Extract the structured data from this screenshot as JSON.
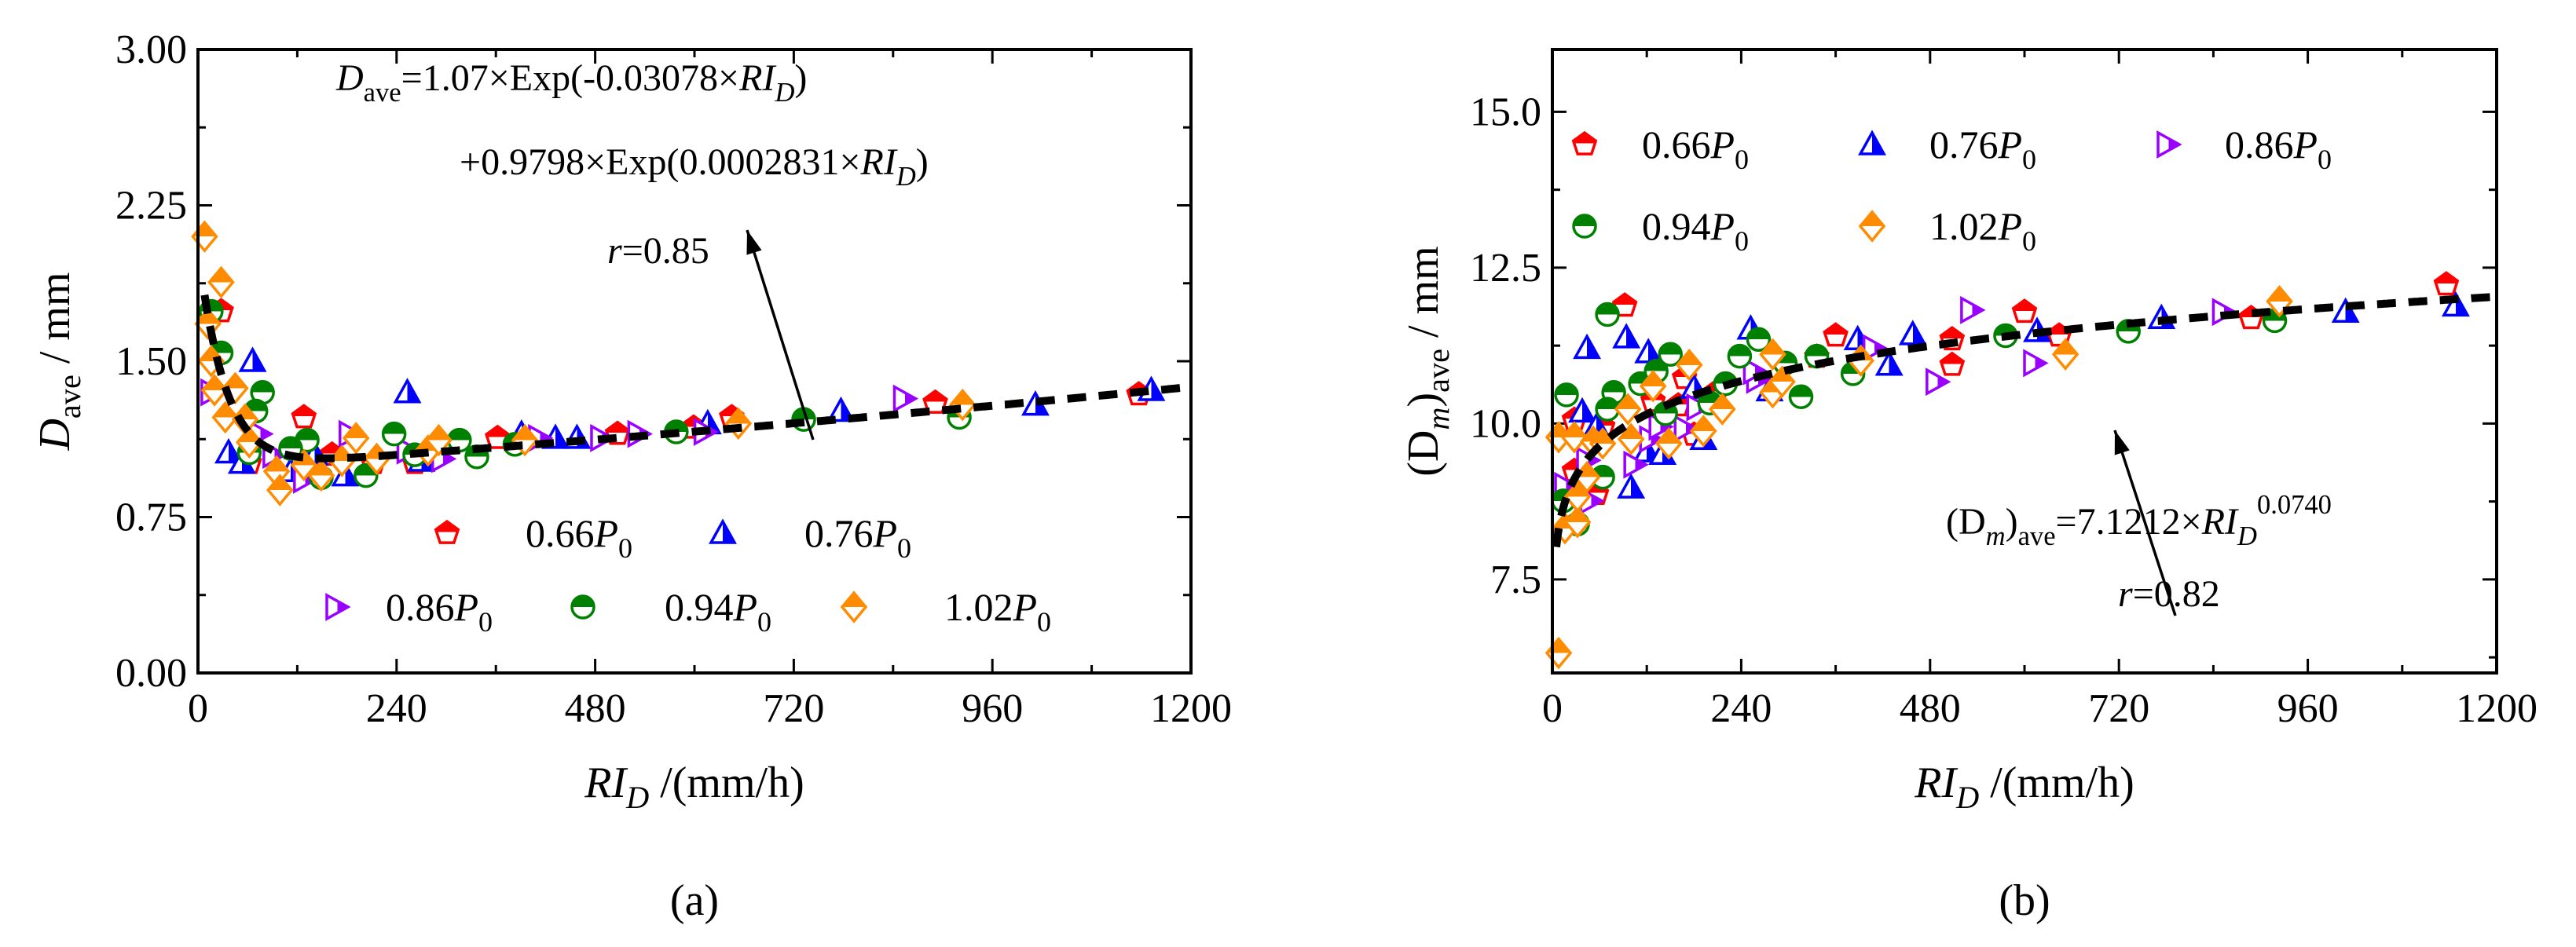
{
  "chart_data": [
    {
      "type": "scatter",
      "panel_label": "(a)",
      "panel_letter": "a",
      "xlabel": [
        {
          "t": "RI",
          "i": true
        },
        {
          "t": "D",
          "i": true,
          "sub": true
        },
        {
          "t": " /(mm/h)"
        }
      ],
      "ylabel": [
        {
          "t": "D",
          "i": true
        },
        {
          "t": "ave",
          "sub": true
        },
        {
          "t": " / mm"
        }
      ],
      "xlim": [
        0,
        1200
      ],
      "ylim": [
        0,
        3
      ],
      "x_ticks": [
        0,
        240,
        480,
        720,
        960,
        1200
      ],
      "y_ticks": [
        0,
        0.75,
        1.5,
        2.25,
        3.0
      ],
      "y_tick_labels": [
        "0.00",
        "0.75",
        "1.50",
        "2.25",
        "3.00"
      ],
      "fit": {
        "model": "1.07*exp(-0.03078*x)+0.9798*exp(0.0002831*x)",
        "x_start": 8,
        "r": 0.85
      },
      "equation_lines": [
        [
          {
            "t": "D",
            "i": true
          },
          {
            "t": "ave",
            "sub": true
          },
          {
            "t": "=1.07×Exp(-0.03078×"
          },
          {
            "t": "RI",
            "i": true
          },
          {
            "t": "D",
            "i": true,
            "sub": true
          },
          {
            "t": ")"
          }
        ],
        [
          {
            "t": "+0.9798×Exp(0.0002831×"
          },
          {
            "t": "RI",
            "i": true
          },
          {
            "t": "D",
            "i": true,
            "sub": true
          },
          {
            "t": ")"
          }
        ],
        [
          {
            "t": "r",
            "i": true
          },
          {
            "t": "=0.85"
          }
        ]
      ],
      "legend_placement": "bottom-center",
      "series": [
        {
          "name": "0.66P0",
          "coef": "0.66",
          "sym": "P",
          "sub": "0",
          "color": "#ff0000",
          "marker": "pentagon",
          "points": [
            [
              28,
              1.74
            ],
            [
              128,
              1.23
            ],
            [
              62,
              1.01
            ],
            [
              162,
              1.05
            ],
            [
              262,
              1.01
            ],
            [
              362,
              1.13
            ],
            [
              507,
              1.15
            ],
            [
              645,
              1.23
            ],
            [
              599,
              1.18
            ],
            [
              891,
              1.3
            ],
            [
              1137,
              1.34
            ],
            [
              212,
              1.01
            ]
          ]
        },
        {
          "name": "0.76P0",
          "coef": "0.76",
          "sym": "P",
          "sub": "0",
          "color": "#0000ff",
          "marker": "triangle-up",
          "points": [
            [
              66,
              1.5
            ],
            [
              253,
              1.35
            ],
            [
              37,
              1.06
            ],
            [
              53,
              1.01
            ],
            [
              112,
              0.97
            ],
            [
              178,
              0.95
            ],
            [
              270,
              1.02
            ],
            [
              391,
              1.15
            ],
            [
              432,
              1.13
            ],
            [
              458,
              1.13
            ],
            [
              616,
              1.2
            ],
            [
              777,
              1.26
            ],
            [
              1012,
              1.29
            ],
            [
              1152,
              1.36
            ],
            [
              141,
              1.05
            ]
          ]
        },
        {
          "name": "0.86P0",
          "coef": "0.86",
          "sym": "P",
          "sub": "0",
          "color": "#9900ff",
          "marker": "triangle-right",
          "points": [
            [
              16,
              1.35
            ],
            [
              74,
              1.15
            ],
            [
              91,
              1.05
            ],
            [
              128,
              0.93
            ],
            [
              183,
              1.15
            ],
            [
              253,
              1.07
            ],
            [
              412,
              1.13
            ],
            [
              487,
              1.13
            ],
            [
              532,
              1.15
            ],
            [
              612,
              1.16
            ],
            [
              853,
              1.32
            ],
            [
              295,
              1.03
            ]
          ]
        },
        {
          "name": "0.94P0",
          "coef": "0.94",
          "sym": "P",
          "sub": "0",
          "color": "#008000",
          "marker": "circle",
          "points": [
            [
              16,
              1.74
            ],
            [
              28,
              1.54
            ],
            [
              78,
              1.35
            ],
            [
              70,
              1.26
            ],
            [
              62,
              1.06
            ],
            [
              132,
              1.12
            ],
            [
              112,
              1.08
            ],
            [
              203,
              0.95
            ],
            [
              237,
              1.15
            ],
            [
              316,
              1.12
            ],
            [
              337,
              1.04
            ],
            [
              383,
              1.1
            ],
            [
              578,
              1.16
            ],
            [
              732,
              1.22
            ],
            [
              920,
              1.23
            ],
            [
              149,
              0.94
            ],
            [
              262,
              1.05
            ]
          ]
        },
        {
          "name": "1.02P0",
          "coef": "1.02",
          "sym": "P",
          "sub": "0",
          "color": "#ff8c00",
          "marker": "diamond",
          "points": [
            [
              8,
              2.1
            ],
            [
              28,
              1.88
            ],
            [
              12,
              1.68
            ],
            [
              16,
              1.5
            ],
            [
              20,
              1.36
            ],
            [
              45,
              1.37
            ],
            [
              33,
              1.23
            ],
            [
              57,
              1.22
            ],
            [
              62,
              1.11
            ],
            [
              95,
              0.97
            ],
            [
              99,
              0.88
            ],
            [
              128,
              1.0
            ],
            [
              149,
              0.95
            ],
            [
              174,
              1.02
            ],
            [
              191,
              1.13
            ],
            [
              216,
              1.03
            ],
            [
              278,
              1.07
            ],
            [
              291,
              1.12
            ],
            [
              395,
              1.12
            ],
            [
              653,
              1.2
            ],
            [
              924,
              1.29
            ]
          ]
        }
      ]
    },
    {
      "type": "scatter",
      "panel_label": "(b)",
      "panel_letter": "b",
      "xlabel": [
        {
          "t": "RI",
          "i": true
        },
        {
          "t": "D",
          "i": true,
          "sub": true
        },
        {
          "t": " /(mm/h)"
        }
      ],
      "ylabel": [
        {
          "t": "(D"
        },
        {
          "t": "m",
          "i": true,
          "sub": true
        },
        {
          "t": ")"
        },
        {
          "t": "ave",
          "sub": true
        },
        {
          "t": " / mm"
        }
      ],
      "xlim": [
        0,
        1200
      ],
      "ylim": [
        6,
        16
      ],
      "x_ticks": [
        0,
        240,
        480,
        720,
        960,
        1200
      ],
      "y_ticks": [
        7.5,
        10.0,
        12.5,
        15.0
      ],
      "y_tick_labels": [
        "7.5",
        "10.0",
        "12.5",
        "15.0"
      ],
      "fit": {
        "model": "7.1212*x^0.0740",
        "x_start": 5,
        "r": 0.82
      },
      "equation_lines": [
        [
          {
            "t": "(D"
          },
          {
            "t": "m",
            "i": true,
            "sub": true
          },
          {
            "t": ")"
          },
          {
            "t": "ave",
            "sub": true
          },
          {
            "t": "=7.1212×"
          },
          {
            "t": "RI",
            "i": true
          },
          {
            "t": "D",
            "i": true,
            "sub": true
          },
          {
            "t": "0.0740",
            "sup": true
          }
        ],
        [
          {
            "t": "r",
            "i": true
          },
          {
            "t": "=0.82"
          }
        ]
      ],
      "legend_placement": "top-left",
      "series": [
        {
          "name": "0.66P0",
          "coef": "0.66",
          "sym": "P",
          "sub": "0",
          "color": "#ff0000",
          "marker": "pentagon",
          "points": [
            [
              92,
              11.89
            ],
            [
              28,
              10.06
            ],
            [
              64,
              9.95
            ],
            [
              28,
              9.24
            ],
            [
              56,
              8.87
            ],
            [
              128,
              10.36
            ],
            [
              168,
              10.73
            ],
            [
              160,
              10.29
            ],
            [
              180,
              9.82
            ],
            [
              208,
              10.5
            ],
            [
              336,
              11.07
            ],
            [
              360,
              11.41
            ],
            [
              508,
              11.35
            ],
            [
              508,
              10.94
            ],
            [
              600,
              11.79
            ],
            [
              644,
              11.41
            ],
            [
              888,
              11.69
            ],
            [
              1136,
              12.23
            ]
          ]
        },
        {
          "name": "0.76P0",
          "coef": "0.76",
          "sym": "P",
          "sub": "0",
          "color": "#0000ff",
          "marker": "triangle-up",
          "points": [
            [
              44,
              11.21
            ],
            [
              94,
              11.38
            ],
            [
              38,
              10.19
            ],
            [
              56,
              9.95
            ],
            [
              100,
              8.97
            ],
            [
              122,
              11.14
            ],
            [
              120,
              9.55
            ],
            [
              140,
              9.51
            ],
            [
              180,
              10.57
            ],
            [
              192,
              9.75
            ],
            [
              252,
              11.52
            ],
            [
              276,
              10.53
            ],
            [
              388,
              11.35
            ],
            [
              428,
              10.94
            ],
            [
              458,
              11.43
            ],
            [
              616,
              11.48
            ],
            [
              774,
              11.69
            ],
            [
              1008,
              11.79
            ],
            [
              1148,
              11.89
            ]
          ]
        },
        {
          "name": "0.86P0",
          "coef": "0.86",
          "sym": "P",
          "sub": "0",
          "color": "#9900ff",
          "marker": "triangle-right",
          "points": [
            [
              16,
              9.0
            ],
            [
              44,
              9.41
            ],
            [
              48,
              8.76
            ],
            [
              104,
              9.34
            ],
            [
              124,
              9.75
            ],
            [
              136,
              9.95
            ],
            [
              168,
              9.92
            ],
            [
              184,
              10.26
            ],
            [
              260,
              10.7
            ],
            [
              256,
              10.84
            ],
            [
              408,
              11.21
            ],
            [
              488,
              10.67
            ],
            [
              532,
              11.82
            ],
            [
              612,
              10.97
            ],
            [
              852,
              11.79
            ]
          ]
        },
        {
          "name": "0.94P0",
          "coef": "0.94",
          "sym": "P",
          "sub": "0",
          "color": "#008000",
          "marker": "circle",
          "points": [
            [
              18,
              10.46
            ],
            [
              70,
              11.75
            ],
            [
              78,
              10.5
            ],
            [
              70,
              10.23
            ],
            [
              64,
              9.14
            ],
            [
              14,
              8.76
            ],
            [
              32,
              8.39
            ],
            [
              112,
              10.64
            ],
            [
              132,
              10.84
            ],
            [
              150,
              11.11
            ],
            [
              144,
              10.16
            ],
            [
              200,
              10.33
            ],
            [
              220,
              10.64
            ],
            [
              238,
              11.08
            ],
            [
              262,
              11.35
            ],
            [
              296,
              10.97
            ],
            [
              316,
              10.43
            ],
            [
              336,
              11.08
            ],
            [
              382,
              10.8
            ],
            [
              576,
              11.41
            ],
            [
              732,
              11.48
            ],
            [
              918,
              11.65
            ]
          ]
        },
        {
          "name": "1.02P0",
          "coef": "1.02",
          "sym": "P",
          "sub": "0",
          "color": "#ff8c00",
          "marker": "diamond",
          "points": [
            [
              8,
              6.32
            ],
            [
              8,
              9.78
            ],
            [
              28,
              9.78
            ],
            [
              16,
              8.32
            ],
            [
              32,
              8.42
            ],
            [
              32,
              8.83
            ],
            [
              44,
              9.14
            ],
            [
              52,
              9.71
            ],
            [
              64,
              9.68
            ],
            [
              96,
              10.23
            ],
            [
              100,
              9.75
            ],
            [
              128,
              10.6
            ],
            [
              148,
              9.68
            ],
            [
              174,
              10.94
            ],
            [
              192,
              9.88
            ],
            [
              216,
              10.23
            ],
            [
              280,
              11.11
            ],
            [
              280,
              10.5
            ],
            [
              292,
              10.67
            ],
            [
              392,
              11.01
            ],
            [
              652,
              11.11
            ],
            [
              924,
              11.96
            ]
          ]
        }
      ]
    }
  ]
}
